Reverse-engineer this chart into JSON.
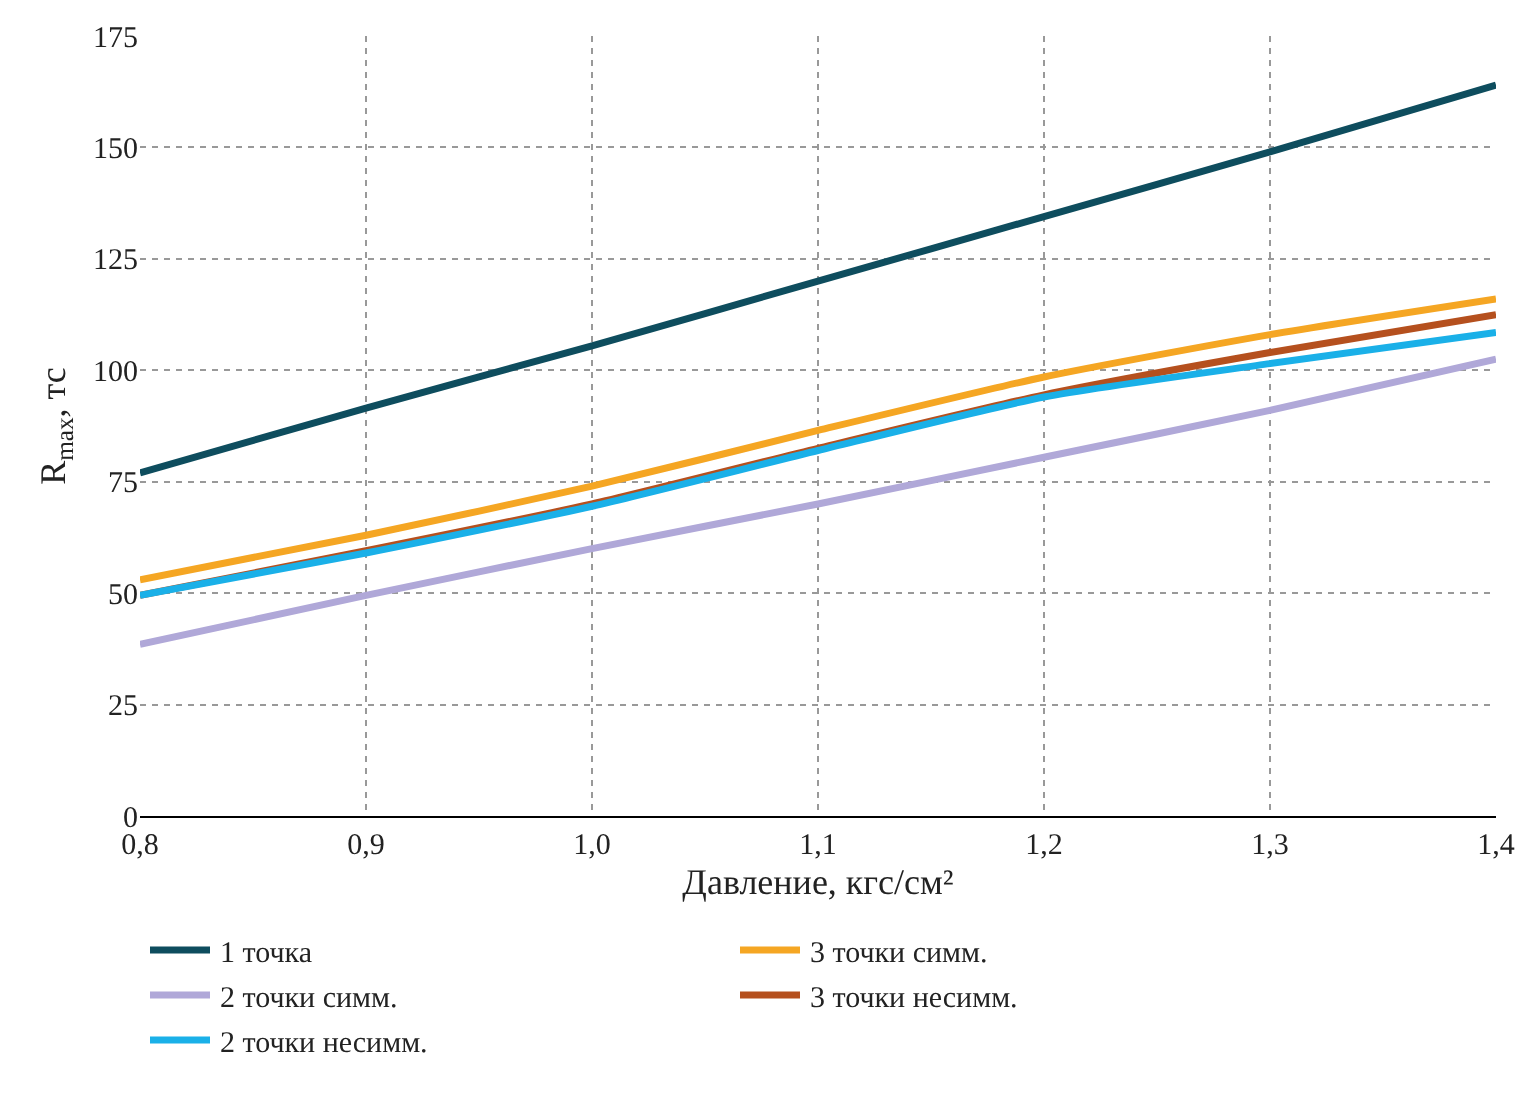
{
  "chart_data": {
    "type": "line",
    "xlabel": "Давление, кгс/см²",
    "ylabel": "R$_{max}$, тс",
    "x": [
      0.8,
      0.9,
      1.0,
      1.1,
      1.2,
      1.3,
      1.4
    ],
    "series": [
      {
        "name": "1 точка",
        "color": "#0e4d5e",
        "values": [
          77,
          91.5,
          105.5,
          120,
          134.5,
          149,
          164
        ]
      },
      {
        "name": "3 точки симм.",
        "color": "#f5a623",
        "values": [
          53,
          63,
          74,
          86.5,
          98.5,
          108,
          116
        ]
      },
      {
        "name": "2 точки симм.",
        "color": "#b0a8d8",
        "values": [
          38.5,
          49.5,
          60,
          70,
          80.5,
          91,
          102.5
        ]
      },
      {
        "name": "3 точки несимм.",
        "color": "#b5501e",
        "values": [
          49.5,
          59.5,
          70,
          82.5,
          94.5,
          104,
          112.5
        ]
      },
      {
        "name": "2 точки несимм.",
        "color": "#1ab0e8",
        "values": [
          49.5,
          59,
          69.5,
          82,
          94,
          101.5,
          108.5
        ]
      }
    ],
    "xlim": [
      0.8,
      1.4
    ],
    "xticks": [
      {
        "value": 0.8,
        "label": "0,8"
      },
      {
        "value": 0.9,
        "label": "0,9"
      },
      {
        "value": 1.0,
        "label": "1,0"
      },
      {
        "value": 1.1,
        "label": "1,1"
      },
      {
        "value": 1.2,
        "label": "1,2"
      },
      {
        "value": 1.3,
        "label": "1,3"
      },
      {
        "value": 1.4,
        "label": "1,4"
      }
    ],
    "ylim": [
      0,
      175
    ],
    "yticks": [
      0,
      25,
      50,
      75,
      100,
      125,
      150,
      175
    ],
    "grid": true,
    "legend": "bottom",
    "marker": "none",
    "line_style": "solid"
  }
}
